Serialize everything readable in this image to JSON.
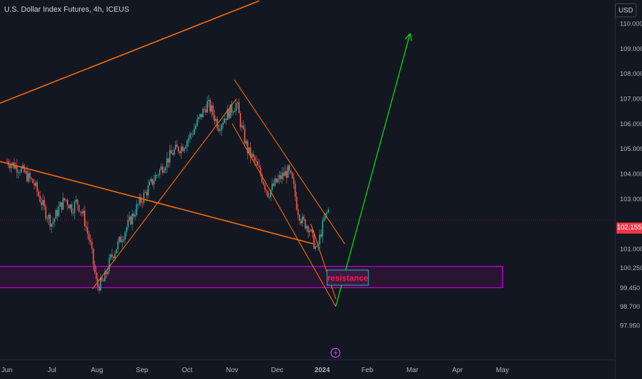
{
  "header": {
    "title": "U.S. Dollar Index Futures, 4h, ICEUS",
    "currency": "USD"
  },
  "chart_data": {
    "type": "line",
    "title": "U.S. Dollar Index Futures, 4h, ICEUS",
    "y_ticks": [
      "110.000",
      "109.000",
      "108.000",
      "107.000",
      "106.000",
      "105.000",
      "104.000",
      "103.000",
      "101.000",
      "100.250",
      "99.450",
      "98.700",
      "97.950"
    ],
    "ylim": [
      97.6,
      110.6
    ],
    "x_ticks": [
      "Jun",
      "Jul",
      "Aug",
      "Sep",
      "Oct",
      "Nov",
      "Dec",
      "2024",
      "Feb",
      "Mar",
      "Apr",
      "May"
    ],
    "last_price": "102.155",
    "last_price_value": 102.155,
    "series": [
      {
        "values": [
          {
            "t": 0,
            "v": 104.5
          },
          {
            "t": 0.3,
            "v": 104.2
          },
          {
            "t": 0.6,
            "v": 103.6
          },
          {
            "t": 0.85,
            "v": 102.5
          },
          {
            "t": 1.0,
            "v": 102.0
          },
          {
            "t": 1.15,
            "v": 102.6
          },
          {
            "t": 1.3,
            "v": 103.0
          },
          {
            "t": 1.45,
            "v": 102.6
          },
          {
            "t": 1.55,
            "v": 102.9
          },
          {
            "t": 1.7,
            "v": 102.3
          },
          {
            "t": 1.85,
            "v": 101.2
          },
          {
            "t": 2.0,
            "v": 99.5
          },
          {
            "t": 2.15,
            "v": 99.7
          },
          {
            "t": 2.3,
            "v": 100.6
          },
          {
            "t": 2.5,
            "v": 101.3
          },
          {
            "t": 2.7,
            "v": 102.0
          },
          {
            "t": 2.9,
            "v": 102.7
          },
          {
            "t": 3.1,
            "v": 103.3
          },
          {
            "t": 3.3,
            "v": 103.9
          },
          {
            "t": 3.5,
            "v": 104.4
          },
          {
            "t": 3.7,
            "v": 104.9
          },
          {
            "t": 3.9,
            "v": 105.1
          },
          {
            "t": 4.1,
            "v": 105.6
          },
          {
            "t": 4.3,
            "v": 106.3
          },
          {
            "t": 4.45,
            "v": 106.8
          },
          {
            "t": 4.55,
            "v": 106.5
          },
          {
            "t": 4.7,
            "v": 105.9
          },
          {
            "t": 4.85,
            "v": 106.3
          },
          {
            "t": 5.0,
            "v": 106.6
          },
          {
            "t": 5.1,
            "v": 106.8
          },
          {
            "t": 5.2,
            "v": 105.9
          },
          {
            "t": 5.35,
            "v": 104.9
          },
          {
            "t": 5.5,
            "v": 104.5
          },
          {
            "t": 5.65,
            "v": 103.9
          },
          {
            "t": 5.8,
            "v": 103.2
          },
          {
            "t": 5.95,
            "v": 103.6
          },
          {
            "t": 6.1,
            "v": 103.9
          },
          {
            "t": 6.25,
            "v": 104.1
          },
          {
            "t": 6.35,
            "v": 103.6
          },
          {
            "t": 6.45,
            "v": 102.6
          },
          {
            "t": 6.55,
            "v": 102.1
          },
          {
            "t": 6.7,
            "v": 101.9
          },
          {
            "t": 6.8,
            "v": 101.3
          },
          {
            "t": 6.88,
            "v": 100.9
          },
          {
            "t": 6.95,
            "v": 101.5
          },
          {
            "t": 7.05,
            "v": 102.2
          },
          {
            "t": 7.15,
            "v": 102.6
          }
        ]
      }
    ],
    "support_zone": {
      "from": 99.45,
      "to": 100.3,
      "t_end": 11.0
    },
    "trendlines": [
      {
        "from": {
          "t": -0.6,
          "v": 106.5
        },
        "to": {
          "t": 5.6,
          "v": 110.9
        }
      },
      {
        "from": {
          "t": -0.6,
          "v": 104.7
        },
        "to": {
          "t": 6.8,
          "v": 101.2
        }
      },
      {
        "from": {
          "t": 1.9,
          "v": 99.4
        },
        "to": {
          "t": 5.1,
          "v": 107.0
        }
      },
      {
        "from": {
          "t": 5.05,
          "v": 107.75
        },
        "to": {
          "t": 7.5,
          "v": 101.2
        }
      },
      {
        "from": {
          "t": 5.0,
          "v": 106.0
        },
        "to": {
          "t": 7.3,
          "v": 98.7
        }
      },
      {
        "from": {
          "t": 6.75,
          "v": 102.0
        },
        "to": {
          "t": 7.3,
          "v": 99.0
        }
      }
    ],
    "projection": {
      "from": {
        "t": 7.3,
        "v": 98.7
      },
      "to": {
        "t": 8.95,
        "v": 109.6
      }
    },
    "annotations": [
      {
        "text": "resistance",
        "t": 7.55,
        "v": 99.85
      }
    ],
    "colors": {
      "background": "#131722",
      "up": "#26a69a",
      "down": "#ef5350",
      "trend": "#ff6d00",
      "zone_border": "#c300d9",
      "zone_fill": "#2a1433",
      "projection": "#00e600",
      "label_text": "#ff1744",
      "label_border": "#26a69a",
      "price_badge": "#f23645",
      "lightning": "#e040fb"
    }
  }
}
